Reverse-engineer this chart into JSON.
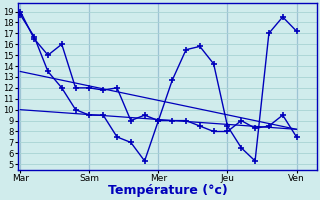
{
  "background_color": "#d0ecec",
  "grid_color": "#a8d4d4",
  "line_color": "#0000bb",
  "xlabel": "Température (°c)",
  "xlabel_fontsize": 9,
  "ytick_labels": [
    "5",
    "6",
    "7",
    "8",
    "9",
    "10",
    "11",
    "12",
    "13",
    "14",
    "15",
    "16",
    "17",
    "18",
    "19"
  ],
  "ytick_vals": [
    5,
    6,
    7,
    8,
    9,
    10,
    11,
    12,
    13,
    14,
    15,
    16,
    17,
    18,
    19
  ],
  "xtick_labels": [
    "Mar",
    "Sam",
    "Mer",
    "Jeu",
    "Ven"
  ],
  "xtick_positions": [
    0,
    5,
    10,
    15,
    20
  ],
  "xlim": [
    -0.2,
    21.5
  ],
  "ylim": [
    4.5,
    19.8
  ],
  "series": [
    {
      "x": [
        0,
        1,
        2,
        3,
        4,
        5,
        6,
        7,
        8,
        9,
        10,
        11,
        12,
        13,
        14,
        15,
        16,
        17,
        18,
        19,
        20
      ],
      "y": [
        19,
        16.5,
        15,
        16,
        12,
        12,
        11.8,
        12,
        9,
        9.5,
        9,
        12.7,
        15.5,
        15.8,
        14.2,
        8.5,
        6.5,
        5.3,
        17,
        18.5,
        17.2
      ],
      "marker": "+",
      "markersize": 4,
      "linewidth": 1.0,
      "linestyle": "-"
    },
    {
      "x": [
        0,
        1,
        2,
        3,
        4,
        5,
        6,
        7,
        8,
        9,
        10,
        11,
        12,
        13,
        14,
        15,
        16,
        17,
        18,
        19,
        20
      ],
      "y": [
        18.7,
        16.7,
        13.5,
        12,
        10,
        9.5,
        9.5,
        7.5,
        7,
        5.3,
        9,
        9,
        9,
        8.5,
        8,
        8,
        9,
        8.3,
        8.5,
        9.5,
        7.5
      ],
      "marker": "+",
      "markersize": 4,
      "linewidth": 1.0,
      "linestyle": "-"
    },
    {
      "x": [
        0,
        20
      ],
      "y": [
        13.5,
        8.2
      ],
      "marker": null,
      "markersize": 0,
      "linewidth": 0.9,
      "linestyle": "-"
    },
    {
      "x": [
        0,
        20
      ],
      "y": [
        10,
        8.2
      ],
      "marker": null,
      "markersize": 0,
      "linewidth": 0.9,
      "linestyle": "-"
    }
  ]
}
